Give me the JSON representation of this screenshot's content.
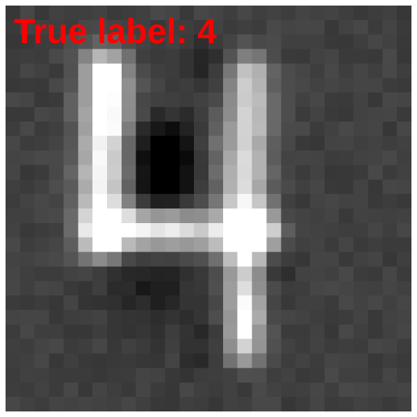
{
  "caption": {
    "text": "True label: 4",
    "color": "#ff0000"
  },
  "image": {
    "subject": "handwritten-digit",
    "background_color": "#414141"
  }
}
